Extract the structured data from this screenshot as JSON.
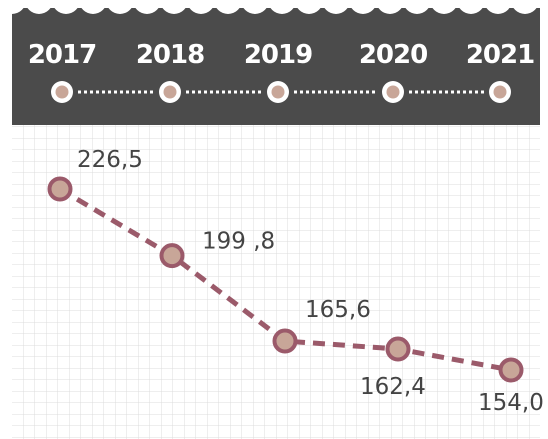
{
  "chart_data": {
    "type": "line",
    "categories": [
      "2017",
      "2018",
      "2019",
      "2020",
      "2021"
    ],
    "values": [
      226.5,
      199.8,
      165.6,
      162.4,
      154.0
    ],
    "value_labels": [
      "226,5",
      "199 ,8",
      "165,6",
      "162,4",
      "154,0"
    ],
    "color": "#9b5a6a"
  }
}
